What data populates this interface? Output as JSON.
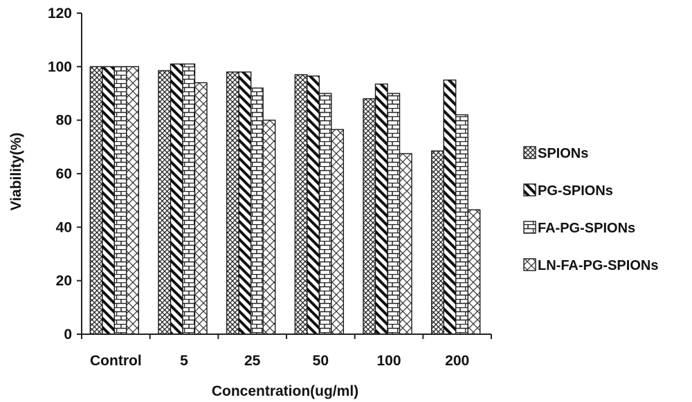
{
  "chart_data": {
    "type": "bar",
    "title": "",
    "xlabel": "Concentration(ug/ml)",
    "ylabel": "Viability(%)",
    "ylim": [
      0,
      120
    ],
    "yticks": [
      0,
      20,
      40,
      60,
      80,
      100,
      120
    ],
    "categories": [
      "Control",
      "5",
      "25",
      "50",
      "100",
      "200"
    ],
    "series": [
      {
        "name": "SPIONs",
        "pattern": "crosshatch",
        "values": [
          100,
          98.5,
          98,
          97,
          88,
          68.5
        ]
      },
      {
        "name": "PG-SPIONs",
        "pattern": "diagonal-stripes",
        "values": [
          100,
          101,
          98,
          96.5,
          93.5,
          95
        ]
      },
      {
        "name": "FA-PG-SPIONs",
        "pattern": "brick",
        "values": [
          100,
          101,
          92,
          90,
          90,
          82
        ]
      },
      {
        "name": "LN-FA-PG-SPIONs",
        "pattern": "wide-crosshatch",
        "values": [
          100,
          94,
          80,
          76.5,
          67.5,
          46.5
        ]
      }
    ],
    "legend_position": "right",
    "grid": false,
    "colors": {
      "stroke": "#1a1a1a",
      "background": "#ffffff"
    }
  }
}
